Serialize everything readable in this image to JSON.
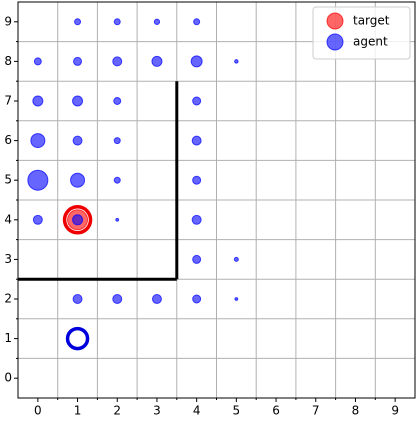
{
  "chart_data": {
    "type": "scatter",
    "xlim": [
      -0.5,
      9.5
    ],
    "ylim": [
      -0.5,
      9.5
    ],
    "xticks": [
      0,
      1,
      2,
      3,
      4,
      5,
      6,
      7,
      8,
      9
    ],
    "yticks": [
      0,
      1,
      2,
      3,
      4,
      5,
      6,
      7,
      8,
      9
    ],
    "xminorticks": [
      0.5,
      1.5,
      2.5,
      3.5,
      4.5,
      5.5,
      6.5,
      7.5,
      8.5
    ],
    "yminorticks": [
      0.5,
      1.5,
      2.5,
      3.5,
      4.5,
      5.5,
      6.5,
      7.5,
      8.5
    ],
    "grid": true,
    "legend": "upper right",
    "series": [
      {
        "name": "target",
        "color": "#ff0000",
        "x": [
          1
        ],
        "y": [
          4
        ],
        "sizes": [
          100
        ]
      },
      {
        "name": "agent",
        "color": "#0000ff",
        "x": [
          1,
          2,
          3,
          4,
          0,
          1,
          2,
          3,
          4,
          5,
          0,
          1,
          2,
          4,
          0,
          1,
          2,
          4,
          0,
          1,
          2,
          4,
          0,
          1,
          2,
          4,
          4,
          5,
          1,
          2,
          3,
          4,
          5
        ],
        "y": [
          9,
          9,
          9,
          9,
          8,
          8,
          8,
          8,
          8,
          8,
          7,
          7,
          7,
          7,
          6,
          6,
          6,
          6,
          5,
          5,
          5,
          5,
          4,
          4,
          4,
          4,
          3,
          3,
          2,
          2,
          2,
          2,
          2
        ],
        "sizes": [
          9,
          9,
          7,
          9,
          12,
          16,
          20,
          25,
          30,
          3,
          25,
          25,
          12,
          16,
          49,
          20,
          9,
          20,
          100,
          49,
          9,
          16,
          20,
          25,
          2,
          20,
          16,
          4,
          20,
          20,
          20,
          16,
          2
        ]
      }
    ],
    "rings": [
      {
        "x": 1,
        "y": 4,
        "size": 225,
        "color": "#ee0000"
      },
      {
        "x": 1,
        "y": 1,
        "size": 144,
        "color": "#0000dd"
      }
    ],
    "walls": [
      {
        "x": [
          3.5,
          3.5
        ],
        "y": [
          7.5,
          2.5
        ]
      },
      {
        "x": [
          -0.5,
          3.5
        ],
        "y": [
          2.5,
          2.5
        ]
      }
    ]
  }
}
